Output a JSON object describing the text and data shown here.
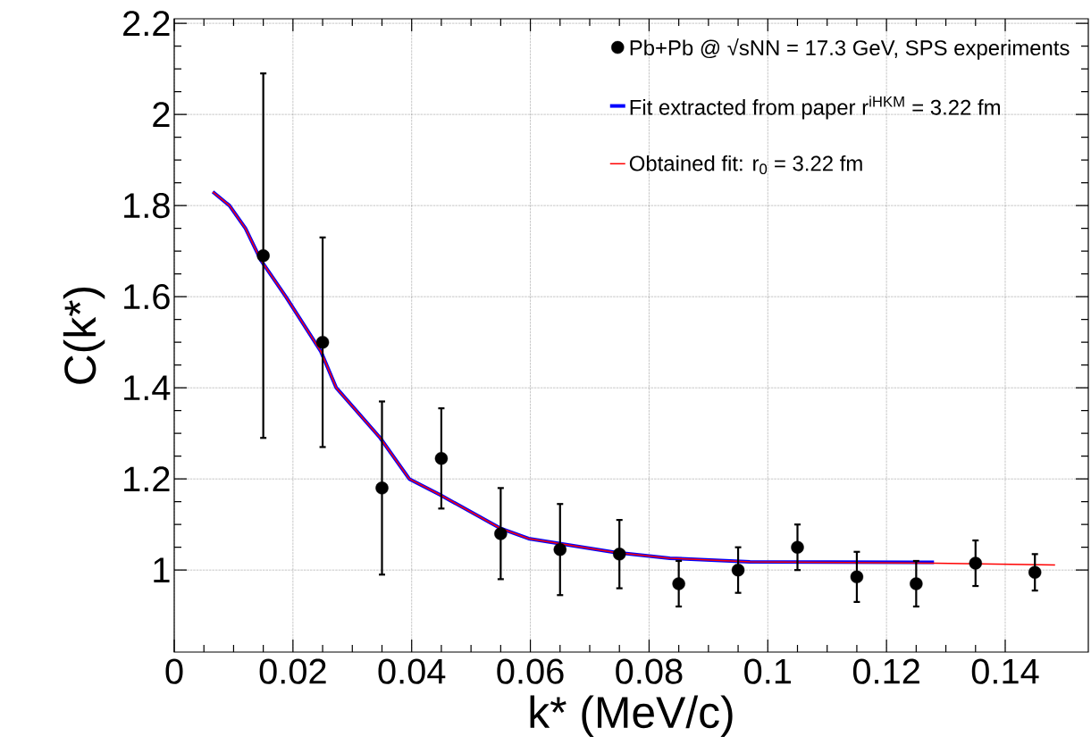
{
  "chart_data": {
    "type": "scatter",
    "xlabel": "k* (MeV/c)",
    "ylabel": "C(k*)",
    "xlim": [
      0,
      0.154
    ],
    "ylim": [
      0.82,
      2.21
    ],
    "xticks": [
      0,
      0.02,
      0.04,
      0.06,
      0.08,
      0.1,
      0.12,
      0.14
    ],
    "yticks": [
      1,
      1.2,
      1.4,
      1.6,
      1.8,
      2,
      2.2
    ],
    "grid": true,
    "legend": "top right",
    "series": [
      {
        "name": "Pb+Pb @ √sNN = 17.3 GeV, SPS experiments",
        "type": "scatter",
        "marker": "circle",
        "color": "#000000",
        "x": [
          0.015,
          0.025,
          0.035,
          0.045,
          0.055,
          0.065,
          0.075,
          0.085,
          0.095,
          0.105,
          0.115,
          0.125,
          0.135,
          0.145
        ],
        "values": [
          1.69,
          1.5,
          1.18,
          1.245,
          1.08,
          1.045,
          1.035,
          0.97,
          1.0,
          1.05,
          0.985,
          0.97,
          1.015,
          0.995
        ],
        "errors": [
          0.4,
          0.23,
          0.19,
          0.11,
          0.1,
          0.1,
          0.075,
          0.05,
          0.05,
          0.05,
          0.055,
          0.05,
          0.05,
          0.04
        ]
      },
      {
        "name": "Fit extracted from paper r$^{iHKM}$ = 3.22 fm",
        "type": "line",
        "color": "#0000ff",
        "x": [
          0.0065,
          0.0093,
          0.012,
          0.0146,
          0.0188,
          0.0247,
          0.0273,
          0.0347,
          0.0396,
          0.0448,
          0.0549,
          0.0597,
          0.0741,
          0.0835,
          0.097,
          0.128
        ],
        "values": [
          1.83,
          1.8,
          1.75,
          1.68,
          1.6,
          1.48,
          1.4,
          1.29,
          1.2,
          1.165,
          1.092,
          1.069,
          1.039,
          1.026,
          1.018,
          1.017
        ]
      },
      {
        "name": "Obtained fit: r$_{0}$ = 3.22 fm",
        "type": "line",
        "color": "#ff0000",
        "x": [
          0.0065,
          0.0093,
          0.012,
          0.0146,
          0.0188,
          0.0247,
          0.0273,
          0.0347,
          0.0396,
          0.0448,
          0.0549,
          0.0597,
          0.0741,
          0.0835,
          0.097,
          0.128,
          0.1484
        ],
        "values": [
          1.83,
          1.8,
          1.75,
          1.68,
          1.6,
          1.48,
          1.4,
          1.29,
          1.2,
          1.165,
          1.092,
          1.069,
          1.039,
          1.026,
          1.018,
          1.015,
          1.011
        ]
      }
    ]
  }
}
